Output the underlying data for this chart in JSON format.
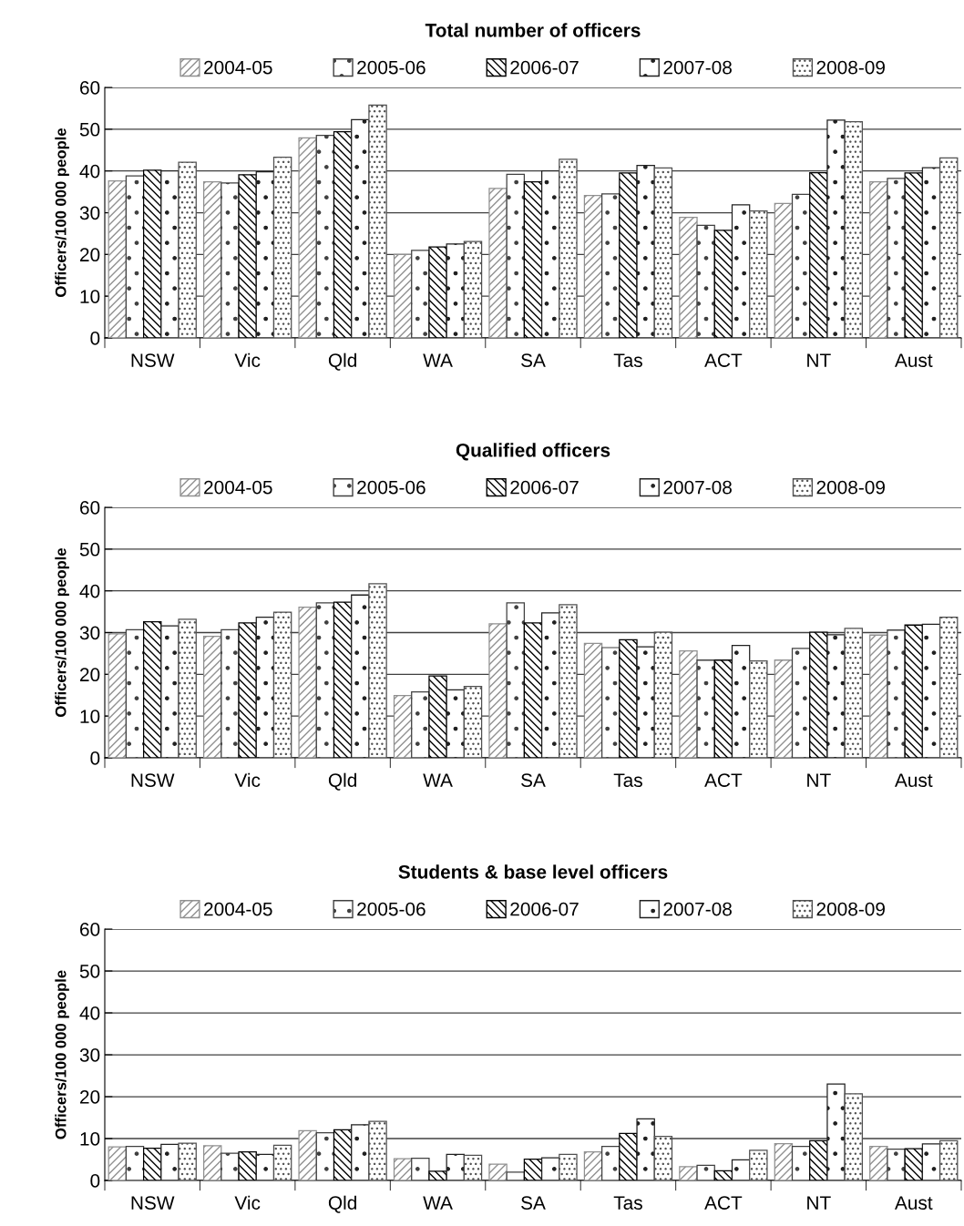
{
  "chart_data": [
    {
      "type": "bar",
      "title": "Total number of officers",
      "ylabel": "Officers/100 000 people",
      "categories": [
        "NSW",
        "Vic",
        "Qld",
        "WA",
        "SA",
        "Tas",
        "ACT",
        "NT",
        "Aust"
      ],
      "ylim": [
        0,
        60
      ],
      "yticks": [
        0,
        10,
        20,
        30,
        40,
        50,
        60
      ],
      "grid": "y",
      "legend": "top",
      "series": [
        {
          "name": "2004-05",
          "color": "#909090",
          "values": [
            37.6,
            37.4,
            47.9,
            20.0,
            35.8,
            34.1,
            28.9,
            32.2,
            37.4
          ]
        },
        {
          "name": "2005-06",
          "color": "#404040",
          "values": [
            38.8,
            37.1,
            48.5,
            21.0,
            39.2,
            34.5,
            27.0,
            34.4,
            38.2
          ]
        },
        {
          "name": "2006-07",
          "color": "#000000",
          "values": [
            40.2,
            39.1,
            49.4,
            21.8,
            37.4,
            39.5,
            25.8,
            39.6,
            39.5
          ]
        },
        {
          "name": "2007-08",
          "color": "#202020",
          "values": [
            40.0,
            39.8,
            52.3,
            22.5,
            40.0,
            41.3,
            31.9,
            52.2,
            40.8
          ]
        },
        {
          "name": "2008-09",
          "color": "#505050",
          "values": [
            42.1,
            43.3,
            55.8,
            23.1,
            42.8,
            40.7,
            30.4,
            51.8,
            43.1
          ]
        }
      ]
    },
    {
      "type": "bar",
      "title": "Qualified officers",
      "ylabel": "Officers/100 000 people",
      "categories": [
        "NSW",
        "Vic",
        "Qld",
        "WA",
        "SA",
        "Tas",
        "ACT",
        "NT",
        "Aust"
      ],
      "ylim": [
        0,
        60
      ],
      "yticks": [
        0,
        10,
        20,
        30,
        40,
        50,
        60
      ],
      "grid": "y",
      "legend": "top",
      "series": [
        {
          "name": "2004-05",
          "color": "#909090",
          "values": [
            29.7,
            29.1,
            36.1,
            14.9,
            32.1,
            27.4,
            25.6,
            23.4,
            29.4
          ]
        },
        {
          "name": "2005-06",
          "color": "#404040",
          "values": [
            30.7,
            30.7,
            37.1,
            15.8,
            37.1,
            26.4,
            23.4,
            26.2,
            30.6
          ]
        },
        {
          "name": "2006-07",
          "color": "#000000",
          "values": [
            32.6,
            32.3,
            37.3,
            19.6,
            32.3,
            28.3,
            23.4,
            30.1,
            31.8
          ]
        },
        {
          "name": "2007-08",
          "color": "#202020",
          "values": [
            31.6,
            33.7,
            39.0,
            16.3,
            34.7,
            26.6,
            26.9,
            29.5,
            32.0
          ]
        },
        {
          "name": "2008-09",
          "color": "#505050",
          "values": [
            33.2,
            34.9,
            41.7,
            17.1,
            36.7,
            30.1,
            23.2,
            31.0,
            33.7
          ]
        }
      ]
    },
    {
      "type": "bar",
      "title": "Students & base level officers",
      "ylabel": "Officers/100 000 people",
      "categories": [
        "NSW",
        "Vic",
        "Qld",
        "WA",
        "SA",
        "Tas",
        "ACT",
        "NT",
        "Aust"
      ],
      "ylim": [
        0,
        60
      ],
      "yticks": [
        0,
        10,
        20,
        30,
        40,
        50,
        60
      ],
      "grid": "y",
      "legend": "top",
      "series": [
        {
          "name": "2004-05",
          "color": "#909090",
          "values": [
            8.0,
            8.3,
            11.9,
            5.2,
            3.9,
            6.8,
            3.3,
            8.8,
            8.1
          ]
        },
        {
          "name": "2005-06",
          "color": "#404040",
          "values": [
            8.1,
            6.5,
            11.4,
            5.3,
            2.0,
            8.1,
            3.6,
            8.1,
            7.5
          ]
        },
        {
          "name": "2006-07",
          "color": "#000000",
          "values": [
            7.7,
            6.8,
            12.1,
            2.2,
            5.1,
            11.2,
            2.3,
            9.5,
            7.6
          ]
        },
        {
          "name": "2007-08",
          "color": "#202020",
          "values": [
            8.6,
            6.2,
            13.3,
            6.2,
            5.4,
            14.7,
            4.9,
            23.0,
            8.7
          ]
        },
        {
          "name": "2008-09",
          "color": "#505050",
          "values": [
            8.9,
            8.4,
            14.1,
            6.0,
            6.2,
            10.5,
            7.2,
            20.7,
            9.5
          ]
        }
      ]
    }
  ]
}
